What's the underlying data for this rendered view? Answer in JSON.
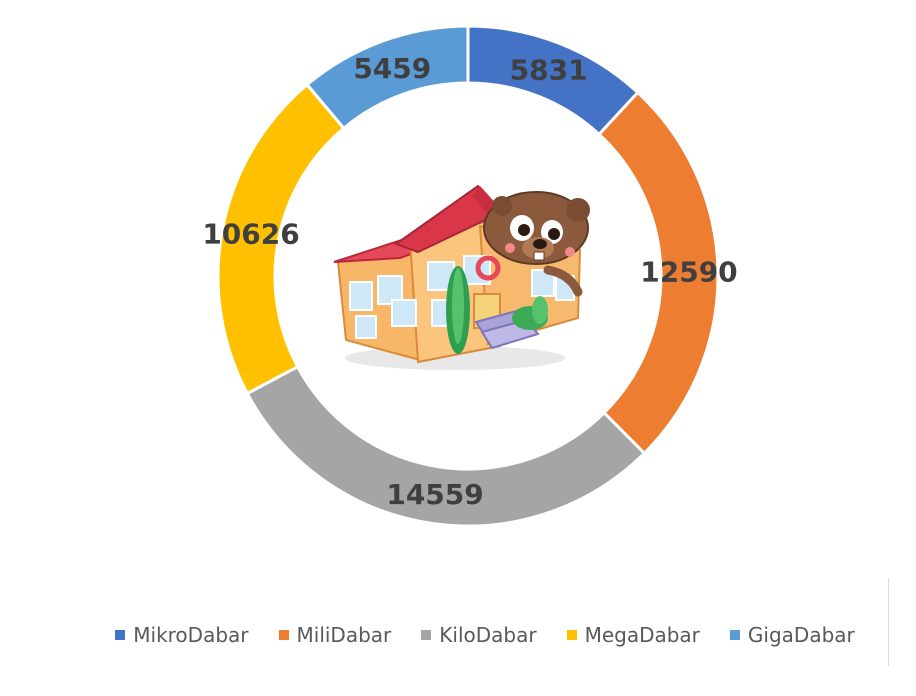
{
  "chart_data": {
    "type": "pie",
    "variant": "doughnut",
    "categories": [
      "MikroDabar",
      "MiliDabar",
      "KiloDabar",
      "MegaDabar",
      "GigaDabar"
    ],
    "values": [
      5831,
      12590,
      14559,
      10626,
      5459
    ],
    "colors": [
      "#4472C4",
      "#ED7D31",
      "#A5A5A5",
      "#FFC000",
      "#5B9BD5"
    ],
    "data_labels": [
      "5831",
      "12590",
      "14559",
      "10626",
      "5459"
    ],
    "legend_position": "bottom",
    "title": "",
    "center_image": "school-building-with-beaver-mascot"
  }
}
